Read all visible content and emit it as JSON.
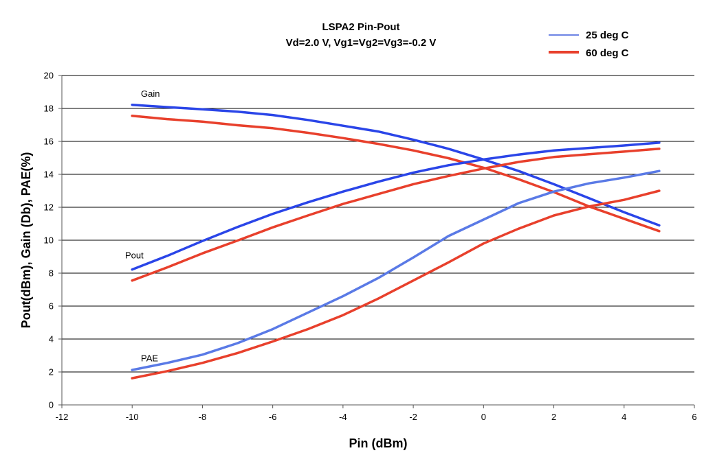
{
  "chart_data": {
    "type": "line",
    "title": "LSPA2 Pin-Pout",
    "subtitle": "Vd=2.0 V, Vg1=Vg2=Vg3=-0.2 V",
    "xlabel": "Pin (dBm)",
    "ylabel": "Pout(dBm), Gain (Db), PAE(%)",
    "xlim": [
      -12,
      6
    ],
    "ylim": [
      0,
      20
    ],
    "x_ticks": [
      -12,
      -10,
      -8,
      -6,
      -4,
      -2,
      0,
      2,
      4,
      6
    ],
    "y_ticks": [
      0,
      2,
      4,
      6,
      8,
      10,
      12,
      14,
      16,
      18,
      20
    ],
    "grid": "horizontal",
    "legend_position": "top-right",
    "legend": [
      {
        "label": "25 deg C",
        "color": "#3b5bdb",
        "style": "thin"
      },
      {
        "label": "60 deg C",
        "color": "#e8402c",
        "style": "thick"
      }
    ],
    "annotations": [
      {
        "text": "Gain",
        "x": -9.75,
        "y": 18.7
      },
      {
        "text": "Pout",
        "x": -10.2,
        "y": 8.9
      },
      {
        "text": "PAE",
        "x": -9.75,
        "y": 2.65
      }
    ],
    "x": [
      -10,
      -9,
      -8,
      -7,
      -6,
      -5,
      -4,
      -3,
      -2,
      -1,
      0,
      1,
      2,
      3,
      4,
      5
    ],
    "series": [
      {
        "name": "Gain",
        "legend_ref": "25 deg C",
        "color": "#2a45e8",
        "values": [
          18.22,
          18.08,
          17.95,
          17.8,
          17.6,
          17.3,
          16.95,
          16.6,
          16.1,
          15.55,
          14.9,
          14.2,
          13.4,
          12.55,
          11.7,
          10.9
        ]
      },
      {
        "name": "Gain",
        "legend_ref": "60 deg C",
        "color": "#e8402c",
        "values": [
          17.55,
          17.35,
          17.2,
          16.98,
          16.8,
          16.52,
          16.2,
          15.85,
          15.45,
          14.98,
          14.4,
          13.7,
          12.92,
          12.05,
          11.3,
          10.55
        ]
      },
      {
        "name": "Pout",
        "legend_ref": "25 deg C",
        "color": "#2a45e8",
        "values": [
          8.22,
          9.05,
          9.95,
          10.8,
          11.6,
          12.3,
          12.95,
          13.55,
          14.1,
          14.55,
          14.9,
          15.2,
          15.45,
          15.6,
          15.75,
          15.92
        ]
      },
      {
        "name": "Pout",
        "legend_ref": "60 deg C",
        "color": "#e8402c",
        "values": [
          7.55,
          8.35,
          9.2,
          9.98,
          10.78,
          11.5,
          12.2,
          12.8,
          13.4,
          13.9,
          14.35,
          14.75,
          15.05,
          15.22,
          15.38,
          15.55
        ]
      },
      {
        "name": "PAE",
        "legend_ref": "25 deg C",
        "color": "#5a7ae6",
        "values": [
          2.12,
          2.55,
          3.05,
          3.75,
          4.6,
          5.6,
          6.6,
          7.7,
          8.95,
          10.25,
          11.25,
          12.25,
          12.95,
          13.45,
          13.8,
          14.2
        ]
      },
      {
        "name": "PAE",
        "legend_ref": "60 deg C",
        "color": "#e8402c",
        "values": [
          1.62,
          2.05,
          2.55,
          3.15,
          3.85,
          4.6,
          5.45,
          6.45,
          7.55,
          8.65,
          9.8,
          10.7,
          11.5,
          12.05,
          12.45,
          13.0
        ]
      }
    ]
  }
}
